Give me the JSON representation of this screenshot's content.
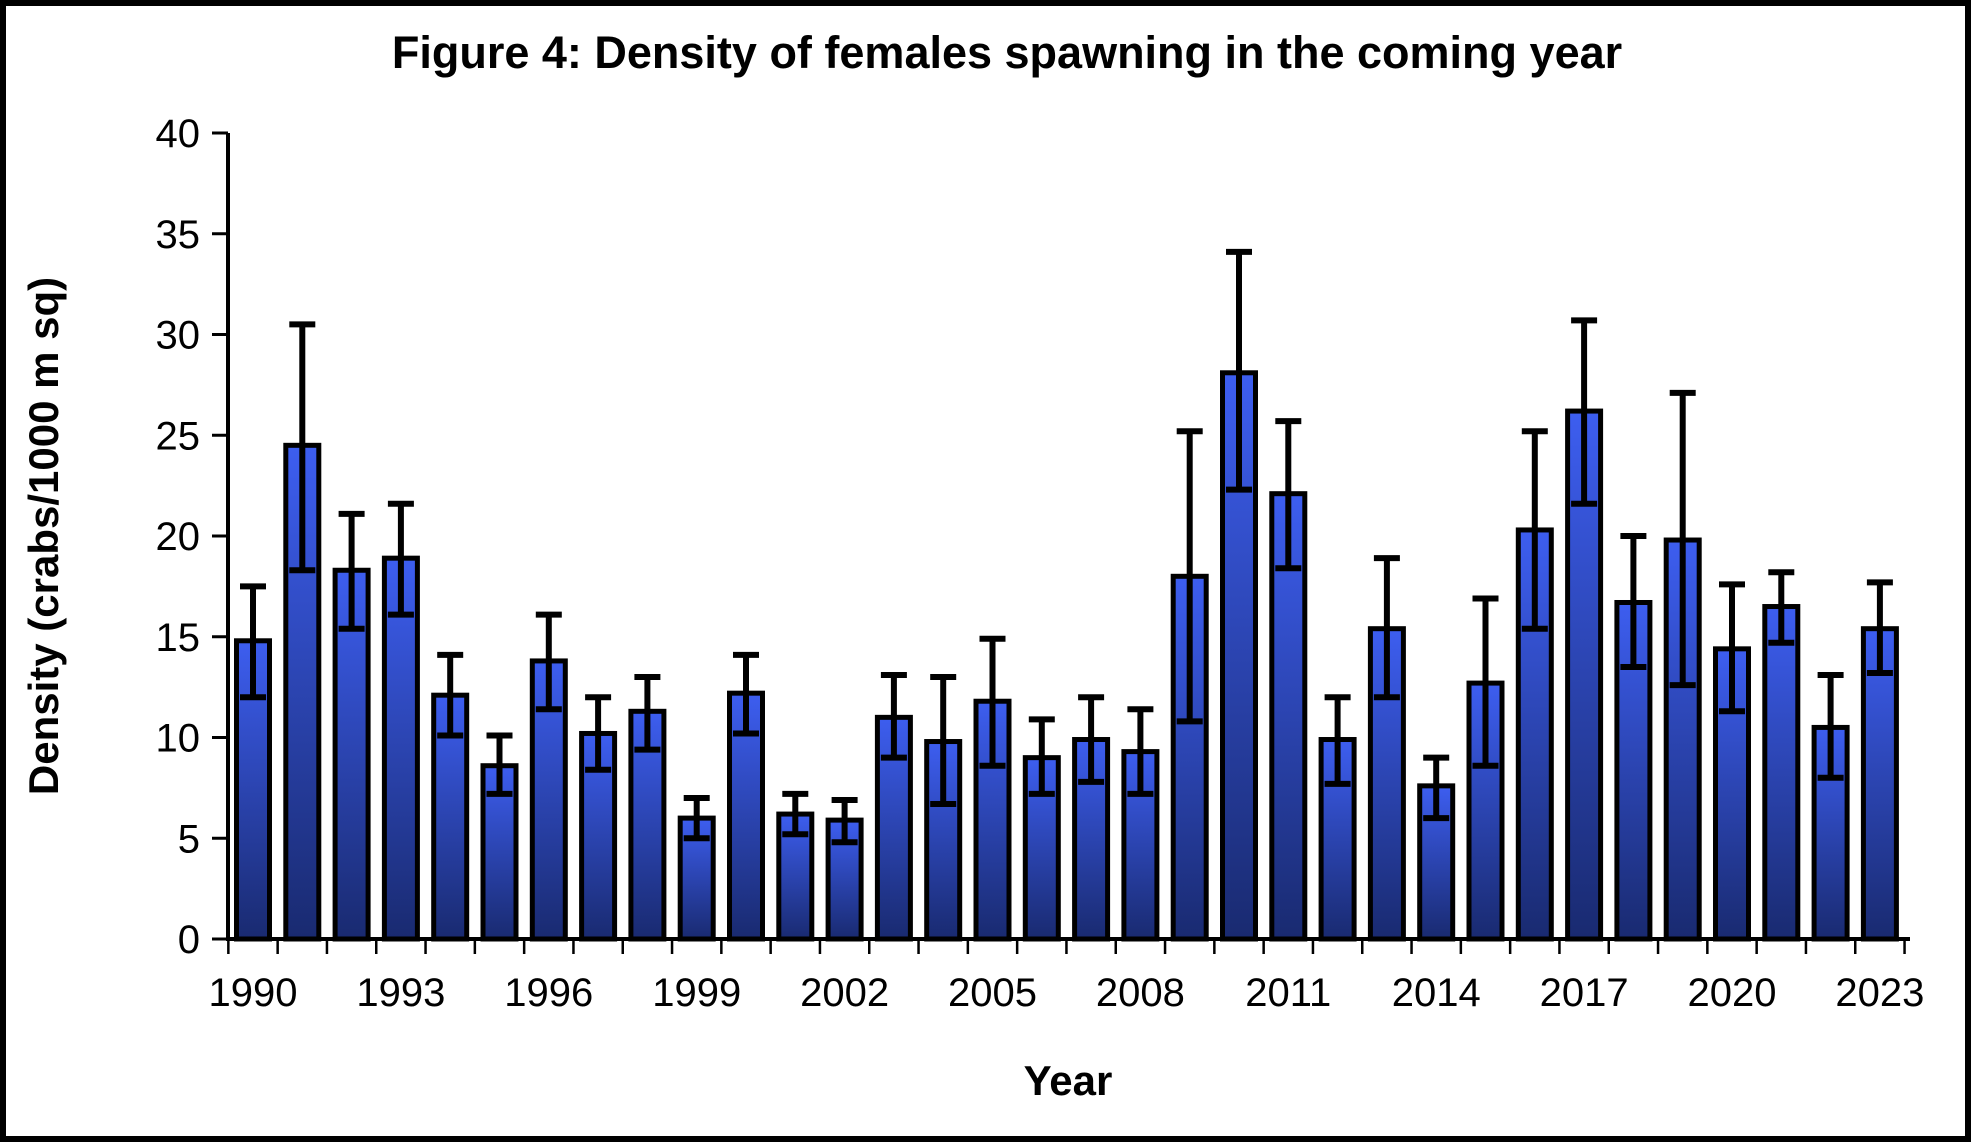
{
  "page": {
    "background_color": "#ffffff",
    "frame_border_color": "#000000"
  },
  "chart_data": {
    "type": "bar",
    "title": "Figure 4: Density of females spawning in the coming year",
    "xlabel": "Year",
    "ylabel": "Density (crabs/1000 m sq)",
    "ylim": [
      0,
      40
    ],
    "ytick_step": 5,
    "ytick_labels": [
      "0",
      "5",
      "10",
      "15",
      "20",
      "25",
      "30",
      "35",
      "40"
    ],
    "xtick_labels": [
      "1990",
      "1993",
      "1996",
      "1999",
      "2002",
      "2005",
      "2008",
      "2011",
      "2014",
      "2017",
      "2020",
      "2023"
    ],
    "grid": false,
    "legend": "none",
    "bar_style": {
      "fill_top": "#3D5EF0",
      "fill_bottom": "#192A70",
      "border_color": "#000000"
    },
    "error_bar_color": "#000000",
    "categories": [
      1990,
      1991,
      1992,
      1993,
      1994,
      1995,
      1996,
      1997,
      1998,
      1999,
      2000,
      2001,
      2002,
      2003,
      2004,
      2005,
      2006,
      2007,
      2008,
      2009,
      2010,
      2011,
      2012,
      2013,
      2014,
      2015,
      2016,
      2017,
      2018,
      2019,
      2020,
      2021,
      2022,
      2023
    ],
    "series": [
      {
        "name": "Density of females spawning",
        "values": [
          14.8,
          24.5,
          18.3,
          18.9,
          12.1,
          8.6,
          13.8,
          10.2,
          11.3,
          6.0,
          12.2,
          6.2,
          5.9,
          11.0,
          9.8,
          11.8,
          9.0,
          9.9,
          9.3,
          18.0,
          28.1,
          22.1,
          9.9,
          15.4,
          7.6,
          12.7,
          20.3,
          26.2,
          16.7,
          19.8,
          14.4,
          16.5,
          10.5,
          15.4
        ]
      }
    ],
    "error_upper": [
      17.5,
      30.5,
      21.1,
      21.6,
      14.1,
      10.1,
      16.1,
      12.0,
      13.0,
      7.0,
      14.1,
      7.2,
      6.9,
      13.1,
      13.0,
      14.9,
      10.9,
      12.0,
      11.4,
      25.2,
      34.1,
      25.7,
      12.0,
      18.9,
      9.0,
      16.9,
      25.2,
      30.7,
      20.0,
      27.1,
      17.6,
      18.2,
      13.1,
      17.7
    ],
    "error_lower": [
      12.0,
      18.3,
      15.4,
      16.1,
      10.1,
      7.2,
      11.4,
      8.4,
      9.4,
      5.0,
      10.2,
      5.2,
      4.8,
      9.0,
      6.7,
      8.6,
      7.2,
      7.8,
      7.2,
      10.8,
      22.3,
      18.4,
      7.7,
      12.0,
      6.0,
      8.6,
      15.4,
      21.6,
      13.5,
      12.6,
      11.3,
      14.7,
      8.0,
      13.2
    ]
  }
}
